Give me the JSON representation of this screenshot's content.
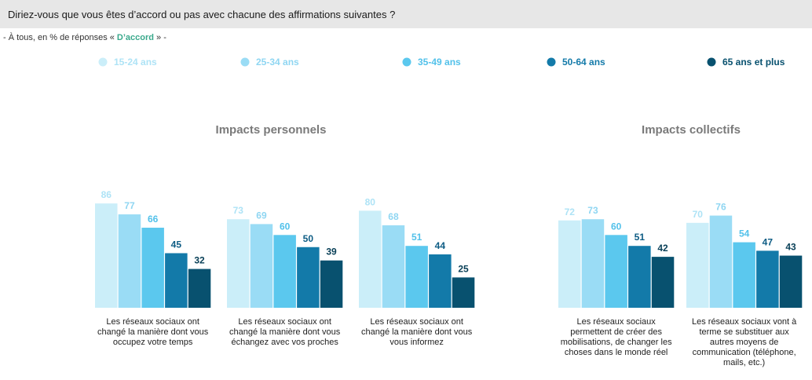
{
  "header": {
    "question": "Diriez-vous que vous êtes d’accord ou pas avec chacune des affirmations suivantes ?",
    "subtitle_prefix": "- À tous, en % de réponses « ",
    "subtitle_accent": "D’accord",
    "subtitle_suffix": " » -"
  },
  "colors": {
    "accent": "#3aa98c",
    "series": [
      "#cbeef9",
      "#9adcf5",
      "#5bc8ee",
      "#137aa9",
      "#08516f"
    ]
  },
  "chart_data": {
    "type": "bar",
    "legend_position": "top",
    "series_names": [
      "15-24 ans",
      "25-34 ans",
      "35-49 ans",
      "50-64 ans",
      "65 ans et plus"
    ],
    "groups": [
      {
        "title": "Impacts personnels",
        "categories": [
          {
            "label_lines": [
              "Les réseaux sociaux ont",
              "changé la manière dont vous",
              "occupez votre temps"
            ],
            "values": [
              86,
              77,
              66,
              45,
              32
            ]
          },
          {
            "label_lines": [
              "Les réseaux sociaux ont",
              "changé la manière dont vous",
              "échangez avec vos proches"
            ],
            "values": [
              73,
              69,
              60,
              50,
              39
            ]
          },
          {
            "label_lines": [
              "Les réseaux sociaux ont",
              "changé la manière dont vous",
              "vous informez"
            ],
            "values": [
              80,
              68,
              51,
              44,
              25
            ]
          }
        ]
      },
      {
        "title": "Impacts collectifs",
        "categories": [
          {
            "label_lines": [
              "Les réseaux sociaux",
              "permettent de créer des",
              "mobilisations, de changer les",
              "choses dans le monde réel"
            ],
            "values": [
              72,
              73,
              60,
              51,
              42
            ]
          },
          {
            "label_lines": [
              "Les réseaux sociaux vont à",
              "terme se substituer aux",
              "autres moyens de",
              "communication (téléphone,",
              "mails, etc.)"
            ],
            "values": [
              70,
              76,
              54,
              47,
              43
            ]
          }
        ]
      }
    ]
  }
}
